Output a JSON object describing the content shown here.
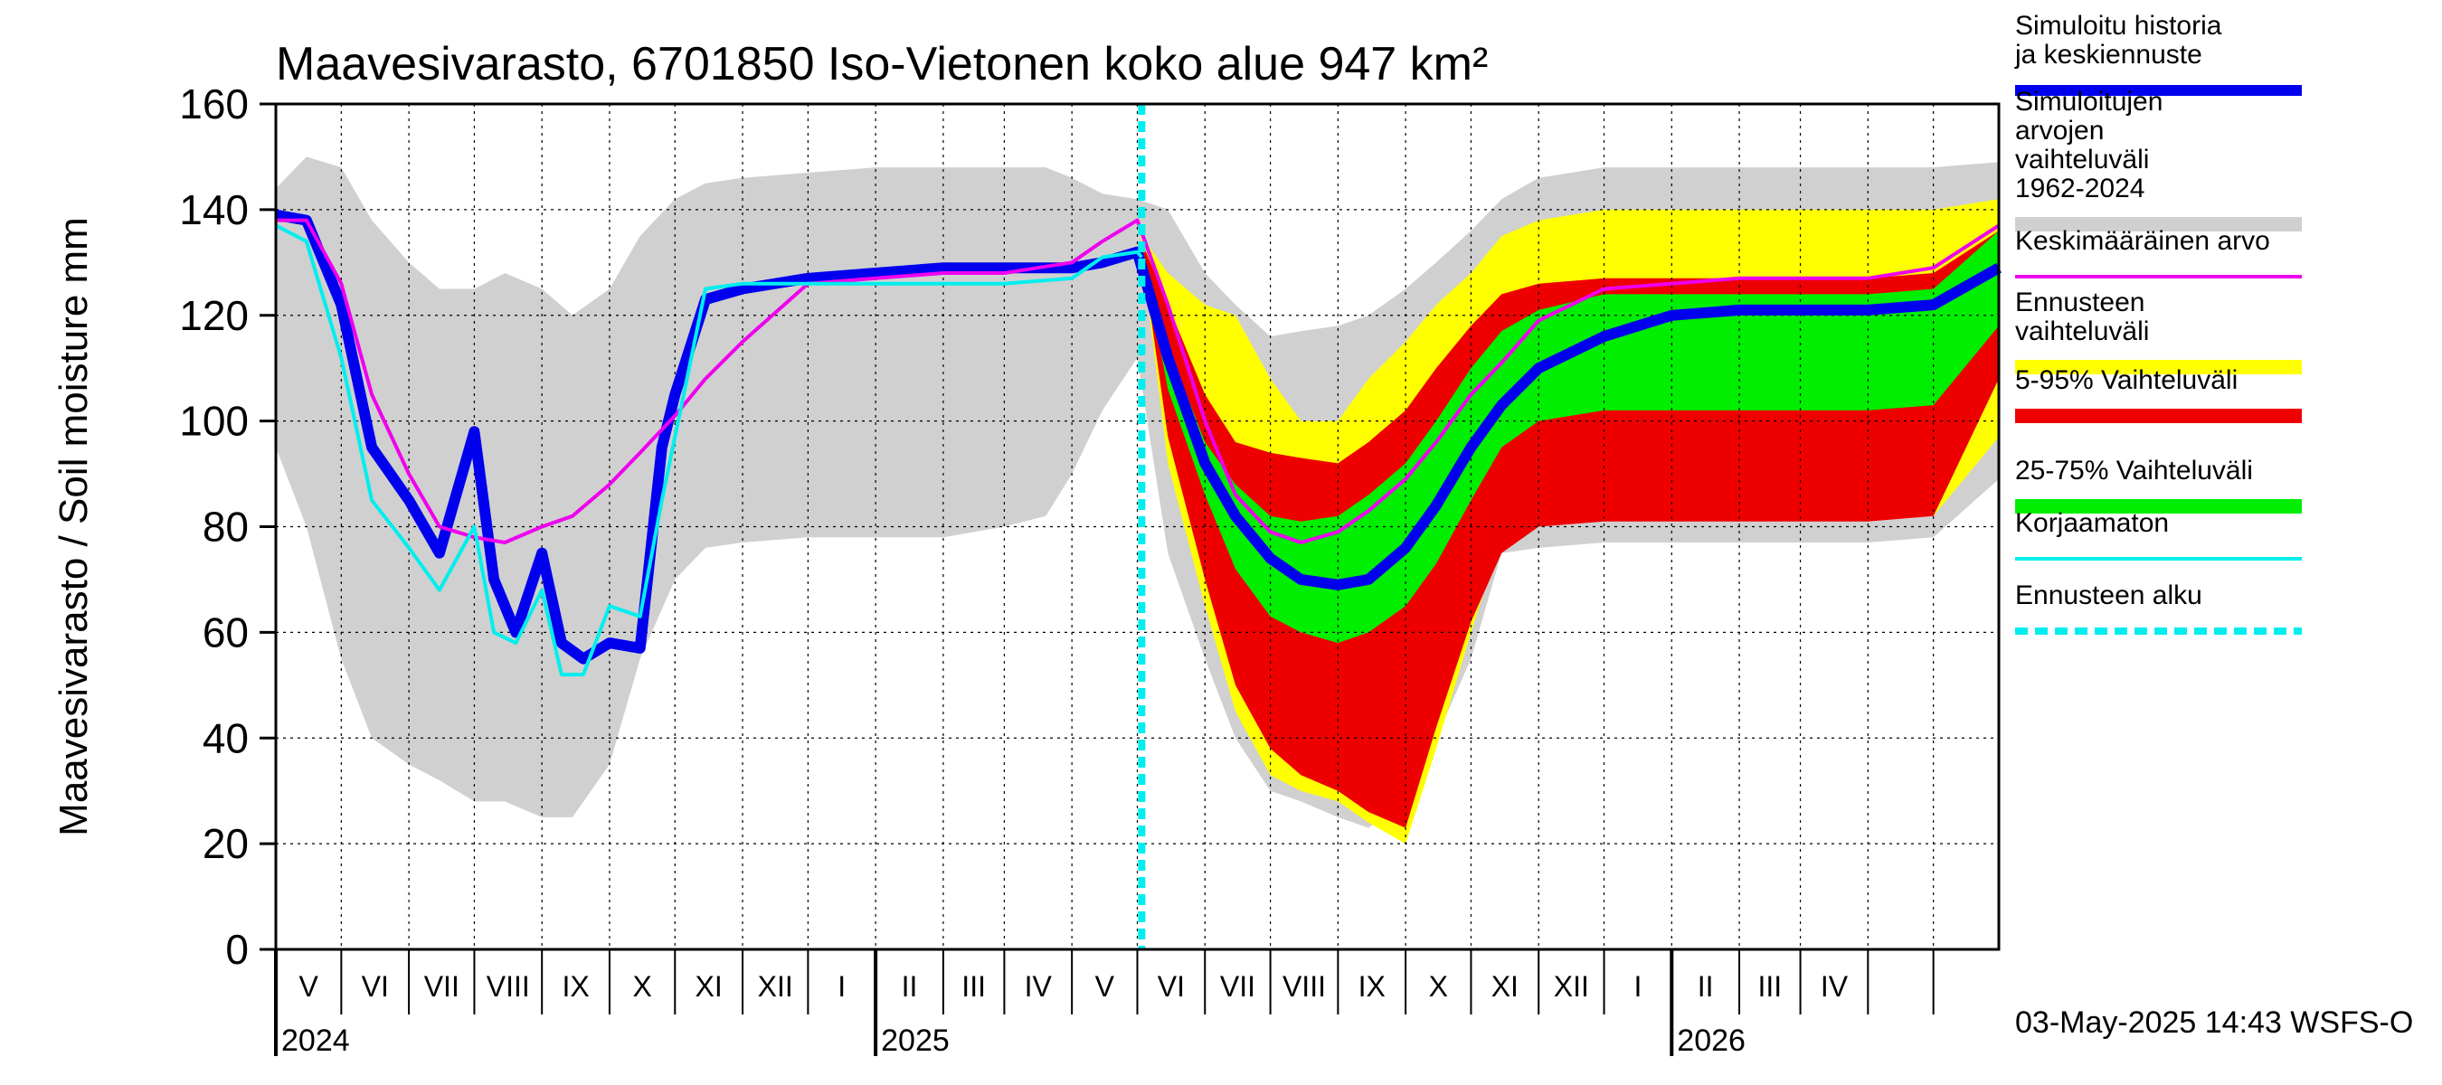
{
  "chart_data": {
    "type": "area",
    "title": "Maavesivarasto, 6701850 Iso-Vietonen koko alue 947 km²",
    "ylabel": "Maavesivarasto / Soil moisture   mm",
    "ylim": [
      0,
      160
    ],
    "yticks": [
      0,
      20,
      40,
      60,
      80,
      100,
      120,
      140,
      160
    ],
    "xlim": [
      "2024-04-01",
      "2026-05-31"
    ],
    "grid": true,
    "legend_position": "right",
    "month_labels": [
      "V",
      "VI",
      "VII",
      "VIII",
      "IX",
      "X",
      "XI",
      "XII",
      "I",
      "II",
      "III",
      "IV",
      "V",
      "VI",
      "VII",
      "VIII",
      "IX",
      "X",
      "XI",
      "XII",
      "I",
      "II",
      "III",
      "IV"
    ],
    "year_labels": [
      "2024",
      "2025",
      "2026"
    ],
    "forecast_start": "2025-05-03",
    "footer": "03-May-2025 14:43 WSFS-O",
    "legend": [
      {
        "label": "Simuloitu historia ja keskiennuste",
        "color": "#0000ee",
        "style": "thick-line"
      },
      {
        "label": "Simuloitujen arvojen vaihteluväli 1962-2024",
        "color": "#d0d0d0",
        "style": "band"
      },
      {
        "label": "Keskimääräinen arvo",
        "color": "#ee00ee",
        "style": "line"
      },
      {
        "label": "Ennusteen vaihteluväli",
        "color": "#ffff00",
        "style": "band"
      },
      {
        "label": "5-95% Vaihteluväli",
        "color": "#ee0000",
        "style": "band"
      },
      {
        "label": "25-75% Vaihteluväli",
        "color": "#00ee00",
        "style": "band"
      },
      {
        "label": "Korjaamaton",
        "color": "#00eeee",
        "style": "line"
      },
      {
        "label": "Ennusteen alku",
        "color": "#00eeee",
        "style": "dashed"
      }
    ],
    "series": [
      {
        "name": "Simuloitujen arvojen vaihteluväli 1962-2024",
        "kind": "band",
        "color": "#d0d0d0",
        "x": [
          "2024-04-01",
          "2024-04-15",
          "2024-05-01",
          "2024-05-15",
          "2024-06-01",
          "2024-06-15",
          "2024-07-01",
          "2024-07-15",
          "2024-08-01",
          "2024-08-15",
          "2024-09-01",
          "2024-09-15",
          "2024-10-01",
          "2024-10-15",
          "2024-11-01",
          "2024-12-01",
          "2025-01-01",
          "2025-02-01",
          "2025-03-01",
          "2025-03-20",
          "2025-04-01",
          "2025-04-15",
          "2025-05-01",
          "2025-05-15",
          "2025-06-01",
          "2025-06-15",
          "2025-07-01",
          "2025-07-15",
          "2025-08-01",
          "2025-08-15",
          "2025-09-01",
          "2025-09-15",
          "2025-10-01",
          "2025-10-15",
          "2025-11-01",
          "2025-12-01",
          "2026-01-01",
          "2026-02-01",
          "2026-03-01",
          "2026-04-01",
          "2026-05-01",
          "2026-05-31"
        ],
        "upper": [
          144,
          150,
          148,
          138,
          130,
          125,
          125,
          128,
          125,
          120,
          125,
          135,
          142,
          145,
          146,
          147,
          148,
          148,
          148,
          148,
          146,
          143,
          142,
          140,
          128,
          122,
          116,
          117,
          118,
          120,
          125,
          130,
          136,
          142,
          146,
          148,
          148,
          148,
          148,
          148,
          148,
          149
        ],
        "lower": [
          95,
          80,
          55,
          40,
          35,
          32,
          28,
          28,
          25,
          25,
          35,
          55,
          70,
          76,
          77,
          78,
          78,
          78,
          80,
          82,
          90,
          102,
          112,
          75,
          55,
          40,
          30,
          28,
          25,
          23,
          28,
          40,
          55,
          75,
          76,
          77,
          77,
          77,
          77,
          77,
          78,
          89
        ]
      },
      {
        "name": "Ennusteen vaihteluväli",
        "kind": "band",
        "color": "#ffff00",
        "x": [
          "2025-05-03",
          "2025-05-15",
          "2025-06-01",
          "2025-06-15",
          "2025-07-01",
          "2025-07-15",
          "2025-08-01",
          "2025-08-15",
          "2025-09-01",
          "2025-09-15",
          "2025-10-01",
          "2025-10-15",
          "2025-11-01",
          "2025-12-01",
          "2026-01-01",
          "2026-02-01",
          "2026-03-01",
          "2026-04-01",
          "2026-05-01",
          "2026-05-31"
        ],
        "upper": [
          135,
          128,
          122,
          120,
          108,
          100,
          100,
          108,
          115,
          122,
          128,
          135,
          138,
          140,
          140,
          140,
          140,
          140,
          140,
          142
        ],
        "lower": [
          132,
          92,
          65,
          45,
          33,
          30,
          28,
          24,
          20,
          38,
          60,
          78,
          80,
          82,
          82,
          82,
          82,
          82,
          82,
          97
        ]
      },
      {
        "name": "5-95% Vaihteluväli",
        "kind": "band",
        "color": "#ee0000",
        "x": [
          "2025-05-03",
          "2025-05-15",
          "2025-06-01",
          "2025-06-15",
          "2025-07-01",
          "2025-07-15",
          "2025-08-01",
          "2025-08-15",
          "2025-09-01",
          "2025-09-15",
          "2025-10-01",
          "2025-10-15",
          "2025-11-01",
          "2025-12-01",
          "2026-01-01",
          "2026-02-01",
          "2026-03-01",
          "2026-04-01",
          "2026-05-01",
          "2026-05-31"
        ],
        "upper": [
          134,
          122,
          105,
          96,
          94,
          93,
          92,
          96,
          102,
          110,
          118,
          124,
          126,
          127,
          127,
          127,
          127,
          127,
          128,
          136
        ],
        "lower": [
          132,
          97,
          70,
          50,
          38,
          33,
          30,
          26,
          23,
          42,
          62,
          75,
          80,
          81,
          81,
          81,
          81,
          81,
          82,
          108
        ]
      },
      {
        "name": "25-75% Vaihteluväli",
        "kind": "band",
        "color": "#00ee00",
        "x": [
          "2025-05-03",
          "2025-05-15",
          "2025-06-01",
          "2025-06-15",
          "2025-07-01",
          "2025-07-15",
          "2025-08-01",
          "2025-08-15",
          "2025-09-01",
          "2025-09-15",
          "2025-10-01",
          "2025-10-15",
          "2025-11-01",
          "2025-12-01",
          "2026-01-01",
          "2026-02-01",
          "2026-03-01",
          "2026-04-01",
          "2026-05-01",
          "2026-05-31"
        ],
        "upper": [
          133,
          114,
          96,
          88,
          82,
          81,
          82,
          86,
          92,
          100,
          110,
          117,
          121,
          124,
          124,
          124,
          124,
          124,
          125,
          136
        ],
        "lower": [
          132,
          106,
          86,
          72,
          63,
          60,
          58,
          60,
          65,
          73,
          85,
          95,
          100,
          102,
          102,
          102,
          102,
          102,
          103,
          118
        ]
      },
      {
        "name": "Simuloitu historia ja keskiennuste",
        "kind": "line",
        "color": "#0000ee",
        "x": [
          "2024-04-01",
          "2024-04-15",
          "2024-05-01",
          "2024-05-15",
          "2024-06-01",
          "2024-06-15",
          "2024-07-01",
          "2024-07-10",
          "2024-07-20",
          "2024-08-01",
          "2024-08-10",
          "2024-08-20",
          "2024-09-01",
          "2024-09-15",
          "2024-09-25",
          "2024-10-01",
          "2024-10-15",
          "2024-11-01",
          "2024-12-01",
          "2025-01-01",
          "2025-02-01",
          "2025-03-01",
          "2025-04-01",
          "2025-04-15",
          "2025-05-01",
          "2025-05-15",
          "2025-06-01",
          "2025-06-15",
          "2025-07-01",
          "2025-07-15",
          "2025-08-01",
          "2025-08-15",
          "2025-09-01",
          "2025-09-15",
          "2025-10-01",
          "2025-10-15",
          "2025-11-01",
          "2025-12-01",
          "2026-01-01",
          "2026-02-01",
          "2026-03-01",
          "2026-04-01",
          "2026-05-01",
          "2026-05-31"
        ],
        "values": [
          139,
          138,
          122,
          95,
          85,
          75,
          98,
          70,
          60,
          75,
          58,
          55,
          58,
          57,
          95,
          105,
          123,
          125,
          127,
          128,
          129,
          129,
          129,
          130,
          132,
          112,
          92,
          82,
          74,
          70,
          69,
          70,
          76,
          84,
          95,
          103,
          110,
          116,
          120,
          121,
          121,
          121,
          122,
          129
        ]
      },
      {
        "name": "Keskimääräinen arvo",
        "kind": "line",
        "color": "#ee00ee",
        "x": [
          "2024-04-01",
          "2024-04-15",
          "2024-05-01",
          "2024-05-15",
          "2024-06-01",
          "2024-06-15",
          "2024-07-01",
          "2024-07-15",
          "2024-08-01",
          "2024-08-15",
          "2024-09-01",
          "2024-09-15",
          "2024-10-01",
          "2024-10-15",
          "2024-11-01",
          "2024-12-01",
          "2025-01-01",
          "2025-02-01",
          "2025-03-01",
          "2025-04-01",
          "2025-04-15",
          "2025-05-01",
          "2025-05-15",
          "2025-06-01",
          "2025-06-15",
          "2025-07-01",
          "2025-07-15",
          "2025-08-01",
          "2025-08-15",
          "2025-09-01",
          "2025-09-15",
          "2025-10-01",
          "2025-10-15",
          "2025-11-01",
          "2025-12-01",
          "2026-01-01",
          "2026-02-01",
          "2026-03-01",
          "2026-04-01",
          "2026-05-01",
          "2026-05-31"
        ],
        "values": [
          138,
          138,
          126,
          105,
          90,
          80,
          78,
          77,
          80,
          82,
          88,
          94,
          101,
          108,
          115,
          126,
          127,
          128,
          128,
          130,
          134,
          138,
          122,
          100,
          86,
          79,
          77,
          79,
          83,
          89,
          96,
          105,
          111,
          119,
          125,
          126,
          127,
          127,
          127,
          129,
          137
        ]
      },
      {
        "name": "Korjaamaton",
        "kind": "line",
        "color": "#00eeee",
        "x": [
          "2024-04-01",
          "2024-04-15",
          "2024-05-01",
          "2024-05-15",
          "2024-06-01",
          "2024-06-15",
          "2024-07-01",
          "2024-07-10",
          "2024-07-20",
          "2024-08-01",
          "2024-08-10",
          "2024-08-20",
          "2024-09-01",
          "2024-09-15",
          "2024-09-25",
          "2024-10-01",
          "2024-10-15",
          "2024-11-01",
          "2024-12-01",
          "2025-01-01",
          "2025-02-01",
          "2025-03-01",
          "2025-04-01",
          "2025-04-15",
          "2025-05-01",
          "2025-05-03"
        ],
        "values": [
          137,
          134,
          112,
          85,
          76,
          68,
          80,
          60,
          58,
          68,
          52,
          52,
          65,
          63,
          85,
          97,
          125,
          126,
          126,
          126,
          126,
          126,
          127,
          131,
          132,
          131
        ]
      }
    ]
  }
}
